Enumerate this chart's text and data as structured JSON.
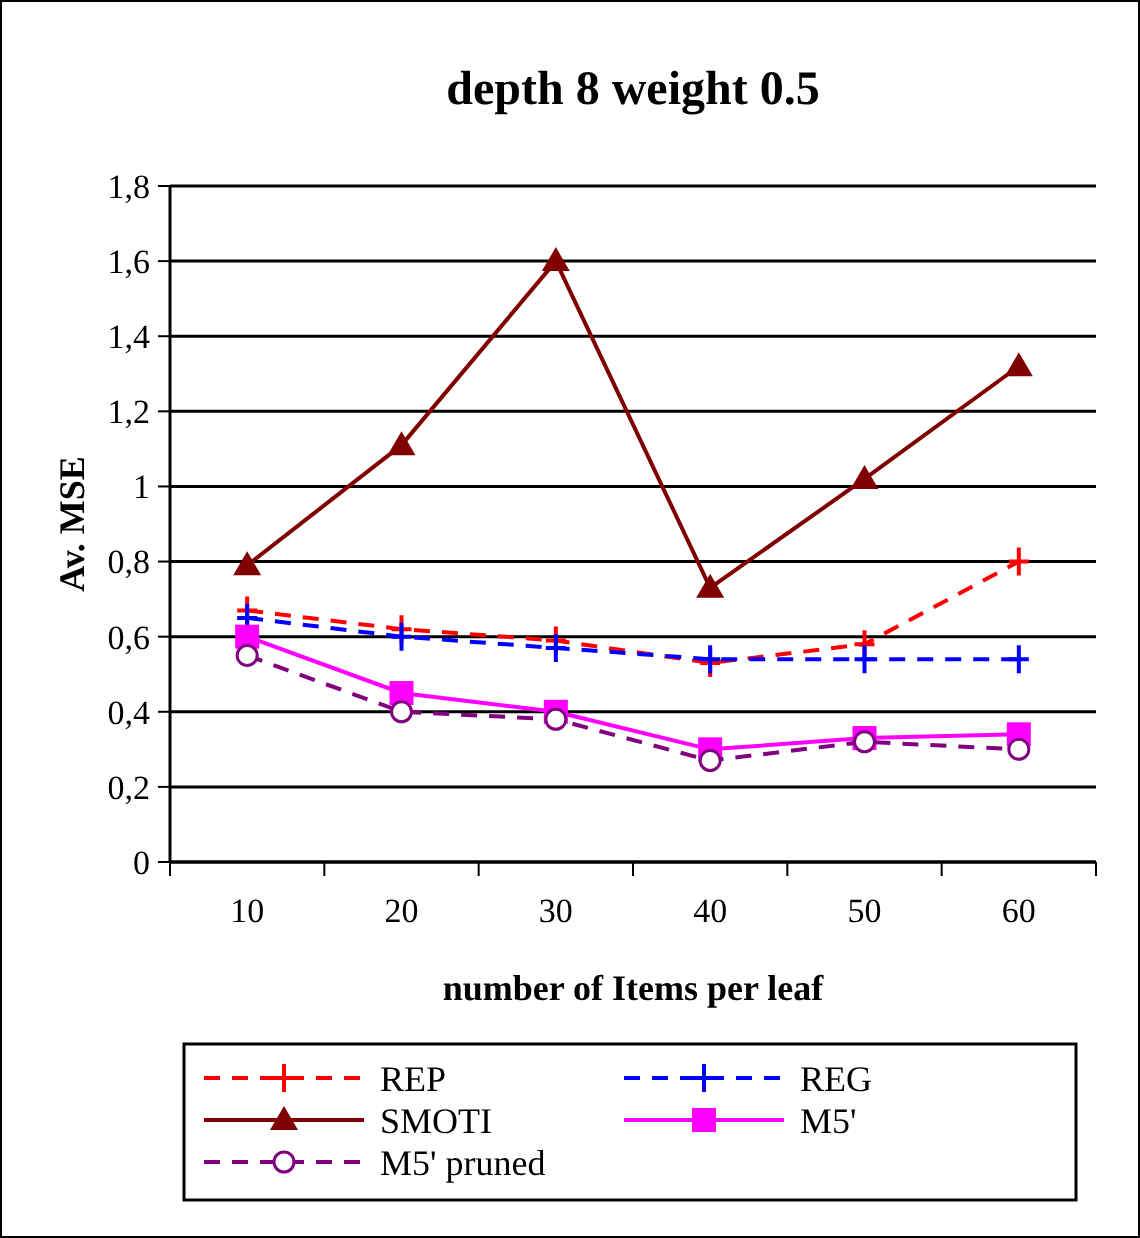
{
  "chart_data": {
    "type": "line",
    "title": "depth 8 weight 0.5",
    "xlabel": "number of Items per leaf",
    "ylabel": "Av. MSE",
    "categories": [
      "10",
      "20",
      "30",
      "40",
      "50",
      "60"
    ],
    "ylim": [
      0,
      1.8
    ],
    "yticks": [
      {
        "value": 0,
        "label": "0"
      },
      {
        "value": 0.2,
        "label": "0,2"
      },
      {
        "value": 0.4,
        "label": "0,4"
      },
      {
        "value": 0.6,
        "label": "0,6"
      },
      {
        "value": 0.8,
        "label": "0,8"
      },
      {
        "value": 1,
        "label": "1"
      },
      {
        "value": 1.2,
        "label": "1,2"
      },
      {
        "value": 1.4,
        "label": "1,4"
      },
      {
        "value": 1.6,
        "label": "1,6"
      },
      {
        "value": 1.8,
        "label": "1,8"
      }
    ],
    "grid": "y",
    "legend": "bottom",
    "series": [
      {
        "name": "REP",
        "color": "#ff0000",
        "line_style": "dashed",
        "marker": "cross",
        "values": [
          0.67,
          0.62,
          0.59,
          0.53,
          0.58,
          0.8
        ]
      },
      {
        "name": "REG",
        "color": "#0000ff",
        "line_style": "dashed",
        "marker": "cross",
        "values": [
          0.65,
          0.6,
          0.57,
          0.54,
          0.54,
          0.54
        ]
      },
      {
        "name": "SMOTI",
        "color": "#800000",
        "line_style": "solid",
        "marker": "triangle",
        "values": [
          0.79,
          1.11,
          1.6,
          0.73,
          1.02,
          1.32
        ]
      },
      {
        "name": "M5'",
        "color": "#ff00ff",
        "line_style": "solid",
        "marker": "square",
        "values": [
          0.6,
          0.45,
          0.4,
          0.3,
          0.33,
          0.34
        ]
      },
      {
        "name": "M5' pruned",
        "color": "#800080",
        "line_style": "dashed",
        "marker": "circle",
        "values": [
          0.55,
          0.4,
          0.38,
          0.27,
          0.32,
          0.3
        ]
      }
    ]
  }
}
